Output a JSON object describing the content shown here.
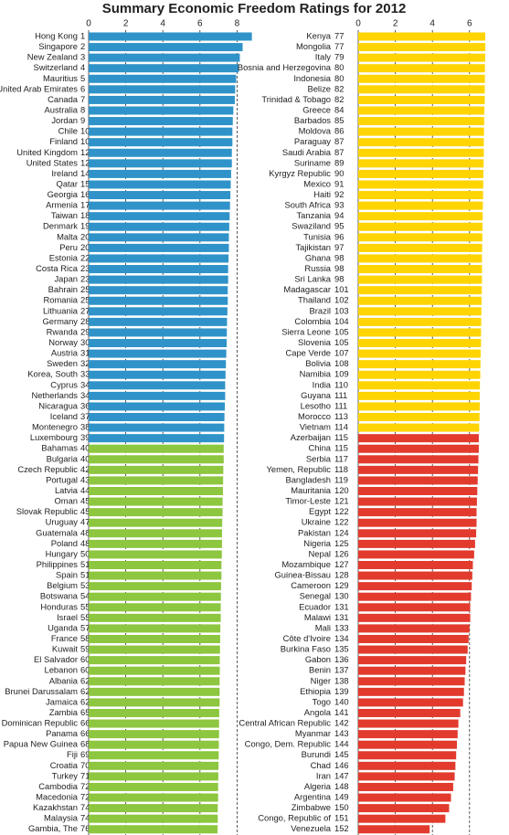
{
  "chart_data": {
    "type": "bar",
    "orientation": "horizontal",
    "title": "Summary Economic Freedom Ratings for 2012",
    "xlim": [
      0,
      9
    ],
    "xticks": [
      0,
      2,
      4,
      6,
      8
    ],
    "grid": true,
    "groups": [
      {
        "color": "#2f93c9",
        "categories": [
          "Hong Kong",
          "Singapore",
          "New Zealand",
          "Switzerland",
          "Mauritius",
          "United Arab Emirates",
          "Canada",
          "Australia",
          "Jordan",
          "Chile",
          "Finland",
          "United Kingdom",
          "United States",
          "Ireland",
          "Qatar",
          "Georgia",
          "Armenia",
          "Taiwan",
          "Denmark",
          "Malta",
          "Peru",
          "Estonia",
          "Costa Rica",
          "Japan",
          "Bahrain",
          "Romania",
          "Lithuania",
          "Germany",
          "Rwanda",
          "Norway",
          "Austria",
          "Sweden",
          "Korea, South",
          "Cyprus",
          "Netherlands",
          "Nicaragua",
          "Iceland",
          "Montenegro",
          "Luxembourg"
        ],
        "ranks": [
          1,
          2,
          3,
          4,
          5,
          6,
          7,
          8,
          9,
          10,
          10,
          12,
          12,
          14,
          15,
          16,
          17,
          18,
          19,
          20,
          20,
          22,
          23,
          23,
          25,
          25,
          27,
          28,
          29,
          30,
          31,
          32,
          33,
          34,
          34,
          36,
          37,
          38,
          39
        ],
        "values": [
          8.8,
          8.3,
          8.15,
          8.1,
          7.95,
          7.9,
          7.88,
          7.8,
          7.77,
          7.75,
          7.75,
          7.72,
          7.72,
          7.68,
          7.66,
          7.64,
          7.62,
          7.6,
          7.58,
          7.56,
          7.56,
          7.54,
          7.52,
          7.52,
          7.5,
          7.5,
          7.48,
          7.46,
          7.45,
          7.44,
          7.42,
          7.4,
          7.38,
          7.36,
          7.36,
          7.34,
          7.32,
          7.31,
          7.3
        ]
      },
      {
        "color": "#8dc63f",
        "categories": [
          "Bahamas",
          "Bulgaria",
          "Czech Republic",
          "Portugal",
          "Latvia",
          "Oman",
          "Slovak Republic",
          "Uruguay",
          "Guatemala",
          "Poland",
          "Hungary",
          "Philippines",
          "Spain",
          "Belgium",
          "Botswana",
          "Honduras",
          "Israel",
          "Uganda",
          "France",
          "Kuwait",
          "El Salvador",
          "Lebanon",
          "Albania",
          "Brunei Darussalam",
          "Jamaica",
          "Zambia",
          "Dominican Republic",
          "Panama",
          "Papua New Guinea",
          "Fiji",
          "Croatia",
          "Turkey",
          "Cambodia",
          "Macedonia",
          "Kazakhstan",
          "Malaysia",
          "Gambia, The"
        ],
        "ranks": [
          40,
          40,
          42,
          43,
          44,
          45,
          45,
          47,
          48,
          48,
          50,
          51,
          51,
          53,
          54,
          55,
          55,
          57,
          58,
          59,
          60,
          60,
          62,
          62,
          62,
          65,
          66,
          66,
          68,
          69,
          70,
          71,
          72,
          72,
          74,
          74,
          76
        ],
        "values": [
          7.28,
          7.28,
          7.26,
          7.25,
          7.24,
          7.22,
          7.22,
          7.2,
          7.19,
          7.19,
          7.18,
          7.16,
          7.16,
          7.14,
          7.13,
          7.12,
          7.12,
          7.1,
          7.09,
          7.08,
          7.07,
          7.07,
          7.06,
          7.06,
          7.06,
          7.04,
          7.03,
          7.03,
          7.02,
          7.01,
          7.0,
          6.99,
          6.98,
          6.98,
          6.96,
          6.96,
          6.95
        ]
      },
      {
        "color": "#ffd400",
        "categories": [
          "Kenya",
          "Mongolia",
          "Italy",
          "Bosnia and Herzegovina",
          "Indonesia",
          "Belize",
          "Trinidad & Tobago",
          "Greece",
          "Barbados",
          "Moldova",
          "Paraguay",
          "Saudi Arabia",
          "Suriname",
          "Kyrgyz Republic",
          "Mexico",
          "Haiti",
          "South Africa",
          "Tanzania",
          "Swaziland",
          "Tunisia",
          "Tajikistan",
          "Ghana",
          "Russia",
          "Sri Lanka",
          "Madagascar",
          "Thailand",
          "Brazil",
          "Colombia",
          "Sierra Leone",
          "Slovenia",
          "Cape Verde",
          "Bolivia",
          "Namibia",
          "India",
          "Guyana",
          "Lesotho",
          "Morocco",
          "Vietnam"
        ],
        "ranks": [
          77,
          77,
          79,
          80,
          80,
          82,
          82,
          84,
          85,
          86,
          87,
          87,
          89,
          90,
          91,
          92,
          93,
          94,
          95,
          96,
          97,
          98,
          98,
          98,
          101,
          102,
          103,
          104,
          105,
          105,
          107,
          108,
          109,
          110,
          111,
          111,
          113,
          114
        ],
        "values": [
          6.85,
          6.85,
          6.84,
          6.83,
          6.83,
          6.82,
          6.82,
          6.8,
          6.79,
          6.78,
          6.77,
          6.77,
          6.76,
          6.75,
          6.74,
          6.73,
          6.72,
          6.71,
          6.7,
          6.69,
          6.68,
          6.67,
          6.67,
          6.67,
          6.66,
          6.65,
          6.64,
          6.63,
          6.62,
          6.62,
          6.6,
          6.59,
          6.58,
          6.56,
          6.55,
          6.55,
          6.54,
          6.52
        ]
      },
      {
        "color": "#e23b2e",
        "categories": [
          "Azerbaijan",
          "China",
          "Serbia",
          "Yemen, Republic",
          "Bangladesh",
          "Mauritania",
          "Timor-Leste",
          "Egypt",
          "Ukraine",
          "Pakistan",
          "Nigeria",
          "Nepal",
          "Mozambique",
          "Guinea-Bissau",
          "Cameroon",
          "Senegal",
          "Ecuador",
          "Malawi",
          "Mali",
          "Côte d'Ivoire",
          "Burkina Faso",
          "Gabon",
          "Benin",
          "Niger",
          "Ethiopia",
          "Togo",
          "Angola",
          "Central African Republic",
          "Myanmar",
          "Congo, Dem. Republic",
          "Burundi",
          "Chad",
          "Iran",
          "Algeria",
          "Argentina",
          "Zimbabwe",
          "Congo, Republic of",
          "Venezuela"
        ],
        "ranks": [
          115,
          115,
          117,
          118,
          119,
          120,
          121,
          122,
          122,
          124,
          125,
          126,
          127,
          128,
          129,
          130,
          131,
          131,
          133,
          134,
          135,
          136,
          137,
          138,
          139,
          140,
          141,
          142,
          143,
          144,
          145,
          146,
          147,
          148,
          149,
          150,
          151,
          152
        ],
        "values": [
          6.5,
          6.5,
          6.48,
          6.46,
          6.44,
          6.42,
          6.4,
          6.38,
          6.38,
          6.36,
          6.3,
          6.25,
          6.18,
          6.15,
          6.12,
          6.08,
          6.04,
          6.04,
          6.0,
          5.95,
          5.9,
          5.82,
          5.78,
          5.74,
          5.7,
          5.65,
          5.5,
          5.4,
          5.36,
          5.32,
          5.28,
          5.24,
          5.2,
          5.12,
          5.0,
          4.9,
          4.7,
          3.85
        ]
      }
    ]
  }
}
